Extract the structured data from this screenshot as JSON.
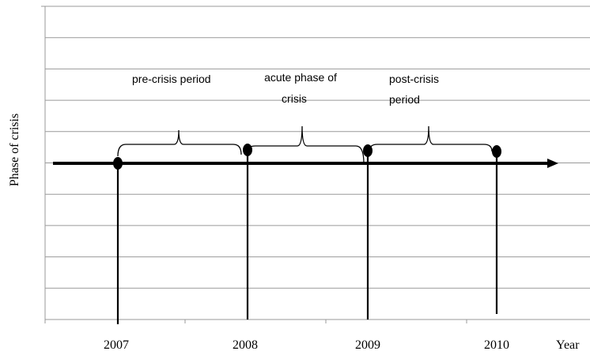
{
  "y_axis_label": "Phase of crisis",
  "x_axis_label": "Year",
  "years": [
    "2007",
    "2008",
    "2009",
    "2010"
  ],
  "periods": [
    {
      "lines": [
        "pre-crisis period"
      ]
    },
    {
      "lines": [
        "acute phase of",
        "crisis"
      ]
    },
    {
      "lines": [
        "post-crisis",
        "period"
      ]
    }
  ]
}
